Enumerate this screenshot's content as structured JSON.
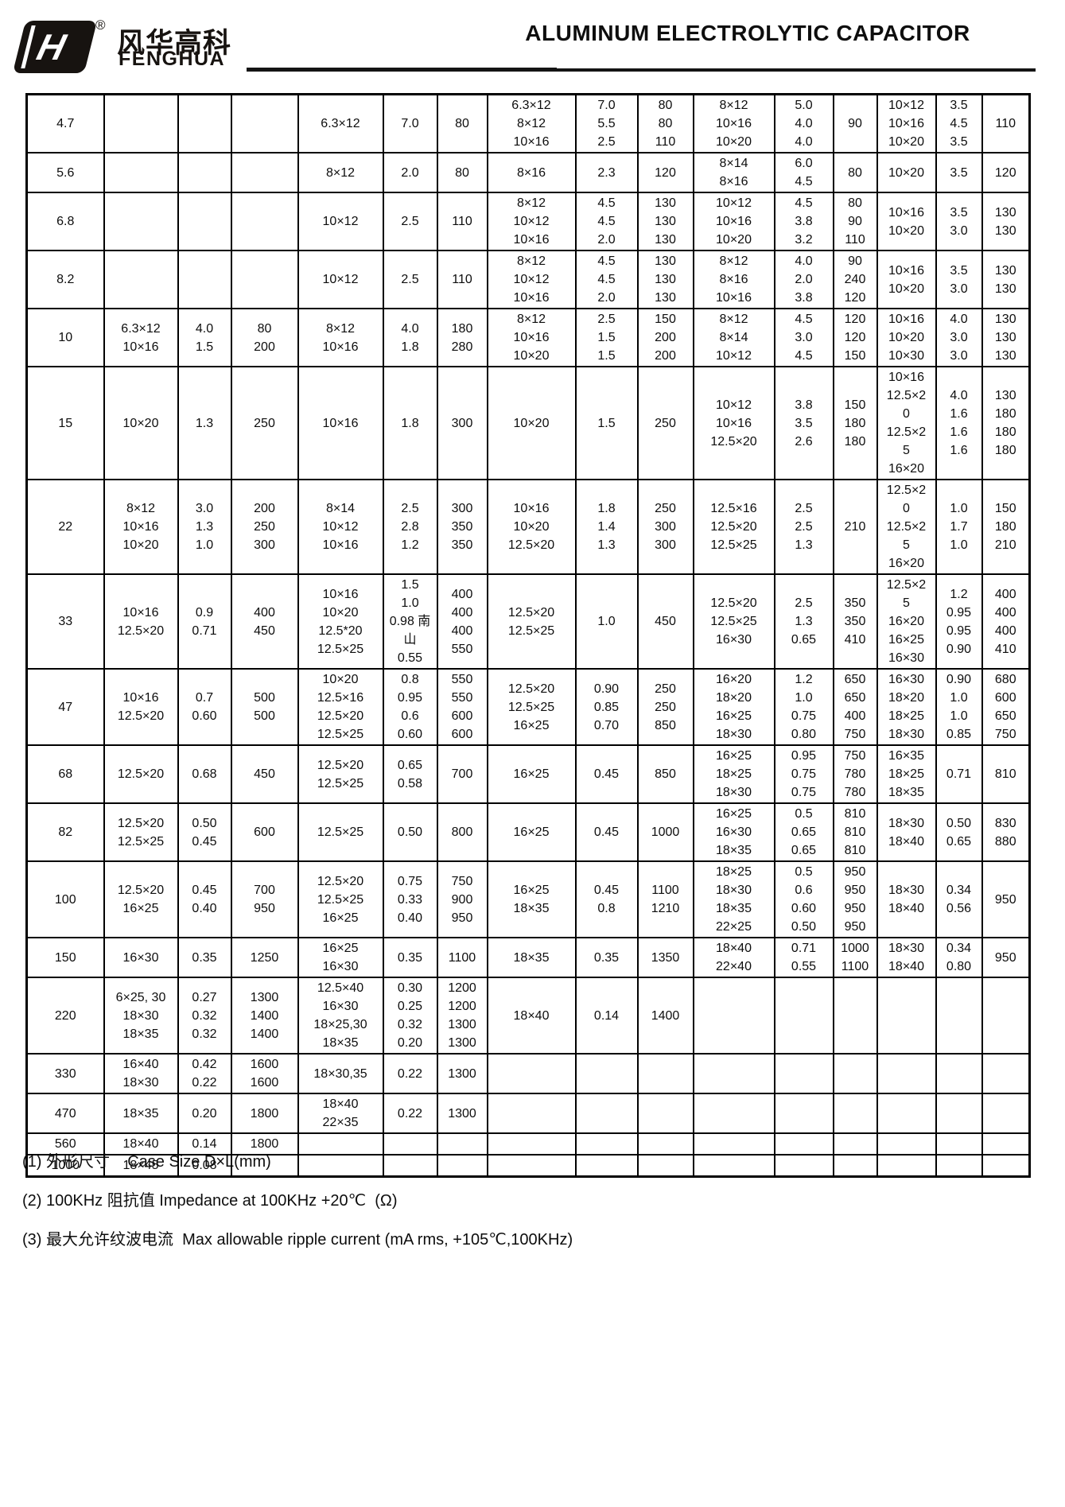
{
  "header": {
    "title": "ALUMINUM ELECTROLYTIC CAPACITOR",
    "logo": {
      "mark_letter": "H",
      "registered": "®",
      "chinese": "风华高科",
      "english": "FENGHUA"
    }
  },
  "table": {
    "rows": [
      [
        "4.7",
        "",
        "",
        "",
        "6.3×12",
        "7.0",
        "80",
        "6.3×12\n8×12\n10×16",
        "7.0\n5.5\n2.5",
        "80\n80\n110",
        "8×12\n10×16\n10×20",
        "5.0\n4.0\n4.0",
        "90",
        "10×12\n10×16\n10×20",
        "3.5\n4.5\n3.5",
        "110"
      ],
      [
        "5.6",
        "",
        "",
        "",
        "8×12",
        "2.0",
        "80",
        "8×16",
        "2.3",
        "120",
        "8×14\n8×16",
        "6.0\n4.5",
        "80",
        "10×20",
        "3.5",
        "120"
      ],
      [
        "6.8",
        "",
        "",
        "",
        "10×12",
        "2.5",
        "110",
        "8×12\n10×12\n10×16",
        "4.5\n4.5\n2.0",
        "130\n130\n130",
        "10×12\n10×16\n10×20",
        "4.5\n3.8\n3.2",
        "80\n90\n110",
        "10×16\n10×20",
        "3.5\n3.0",
        "130\n130"
      ],
      [
        "8.2",
        "",
        "",
        "",
        "10×12",
        "2.5",
        "110",
        "8×12\n10×12\n10×16",
        "4.5\n4.5\n2.0",
        "130\n130\n130",
        "8×12\n8×16\n10×16",
        "4.0\n2.0\n3.8",
        "90\n240\n120",
        "10×16\n10×20",
        "3.5\n3.0",
        "130\n130"
      ],
      [
        "10",
        "6.3×12\n10×16",
        "4.0\n1.5",
        "80\n200",
        "8×12\n10×16",
        "4.0\n1.8",
        "180\n280",
        "8×12\n10×16\n10×20",
        "2.5\n1.5\n1.5",
        "150\n200\n200",
        "8×12\n8×14\n10×12",
        "4.5\n3.0\n4.5",
        "120\n120\n150",
        "10×16\n10×20\n10×30",
        "4.0\n3.0\n3.0",
        "130\n130\n130"
      ],
      [
        "15",
        "10×20",
        "1.3",
        "250",
        "10×16",
        "1.8",
        "300",
        "10×20",
        "1.5",
        "250",
        "10×12\n10×16\n12.5×20",
        "3.8\n3.5\n2.6",
        "150\n180\n180",
        "10×16\n12.5×2\n0\n12.5×2\n5\n16×20",
        "4.0\n1.6\n1.6\n1.6",
        "130\n180\n180\n180"
      ],
      [
        "22",
        "8×12\n10×16\n10×20",
        "3.0\n1.3\n1.0",
        "200\n250\n300",
        "8×14\n10×12\n10×16",
        "2.5\n2.8\n1.2",
        "300\n350\n350",
        "10×16\n10×20\n12.5×20",
        "1.8\n1.4\n1.3",
        "250\n300\n300",
        "12.5×16\n12.5×20\n12.5×25",
        "2.5\n2.5\n1.3",
        "210",
        "12.5×2\n0\n12.5×2\n5\n16×20",
        "1.0\n1.7\n1.0",
        "150\n180\n210"
      ],
      [
        "33",
        "10×16\n12.5×20",
        "0.9\n0.71",
        "400\n450",
        "10×16\n10×20\n12.5*20\n12.5×25",
        "1.5\n1.0\n0.98 南\n山\n0.55",
        "400\n400\n400\n550",
        "12.5×20\n12.5×25",
        "1.0",
        "450",
        "12.5×20\n12.5×25\n16×30",
        "2.5\n1.3\n0.65",
        "350\n350\n410",
        "12.5×2\n5\n16×20\n16×25\n16×30",
        "1.2\n0.95\n0.95\n0.90",
        "400\n400\n400\n410"
      ],
      [
        "47",
        "10×16\n12.5×20",
        "0.7\n0.60",
        "500\n500",
        "10×20\n12.5×16\n12.5×20\n12.5×25",
        "0.8\n0.95\n0.6\n0.60",
        "550\n550\n600\n600",
        "12.5×20\n12.5×25\n16×25",
        "0.90\n0.85\n0.70",
        "250\n250\n850",
        "16×20\n18×20\n16×25\n18×30",
        "1.2\n1.0\n0.75\n0.80",
        "650\n650\n400\n750",
        "16×30\n18×20\n18×25\n18×30",
        "0.90\n1.0\n1.0\n0.85",
        "680\n600\n650\n750"
      ],
      [
        "68",
        "12.5×20",
        "0.68",
        "450",
        "12.5×20\n12.5×25",
        "0.65\n0.58",
        "700",
        "16×25",
        "0.45",
        "850",
        "16×25\n18×25\n18×30",
        "0.95\n0.75\n0.75",
        "750\n780\n780",
        "16×35\n18×25\n18×35",
        "0.71",
        "810"
      ],
      [
        "82",
        "12.5×20\n12.5×25",
        "0.50\n0.45",
        "600",
        "12.5×25",
        "0.50",
        "800",
        "16×25",
        "0.45",
        "1000",
        "16×25\n16×30\n18×35",
        "0.5\n0.65\n0.65",
        "810\n810\n810",
        "18×30\n18×40",
        "0.50\n0.65",
        "830\n880"
      ],
      [
        "100",
        "12.5×20\n16×25",
        "0.45\n0.40",
        "700\n950",
        "12.5×20\n12.5×25\n16×25",
        "0.75\n0.33\n0.40",
        "750\n900\n950",
        "16×25\n18×35",
        "0.45\n0.8",
        "1100\n1210",
        "18×25\n18×30\n18×35\n22×25",
        "0.5\n0.6\n0.60\n0.50",
        "950\n950\n950\n950",
        "18×30\n18×40",
        "0.34\n0.56",
        "950"
      ],
      [
        "150",
        "16×30",
        "0.35",
        "1250",
        "16×25\n16×30",
        "0.35",
        "1100",
        "18×35",
        "0.35",
        "1350",
        "18×40\n22×40",
        "0.71\n0.55",
        "1000\n1100",
        "18×30\n18×40",
        "0.34\n0.80",
        "950"
      ],
      [
        "220",
        "6×25, 30\n18×30\n18×35",
        "0.27\n0.32\n0.32",
        "1300\n1400\n1400",
        "12.5×40\n16×30\n18×25,30\n18×35",
        "0.30\n0.25\n0.32\n0.20",
        "1200\n1200\n1300\n1300",
        "18×40",
        "0.14",
        "1400",
        "",
        "",
        "",
        "",
        "",
        ""
      ],
      [
        "330",
        "16×40\n18×30",
        "0.42\n0.22",
        "1600\n1600",
        "18×30,35",
        "0.22",
        "1300",
        "",
        "",
        "",
        "",
        "",
        "",
        "",
        "",
        ""
      ],
      [
        "470",
        "18×35",
        "0.20",
        "1800",
        "18×40\n22×35",
        "0.22",
        "1300",
        "",
        "",
        "",
        "",
        "",
        "",
        "",
        "",
        ""
      ],
      [
        "560",
        "18×40",
        "0.14",
        "1800",
        "",
        "",
        "",
        "",
        "",
        "",
        "",
        "",
        "",
        "",
        "",
        ""
      ],
      [
        "1000",
        "18×45",
        "0.08",
        "",
        "",
        "",
        "",
        "",
        "",
        "",
        "",
        "",
        "",
        "",
        "",
        ""
      ]
    ]
  },
  "notes": [
    "(1) 外形尺寸    Case Size D×L(mm)",
    "(2) 100KHz 阻抗值 Impedance at 100KHz +20℃  (Ω)",
    "(3) 最大允许纹波电流  Max allowable ripple current (mA rms, +105℃,100KHz)"
  ]
}
